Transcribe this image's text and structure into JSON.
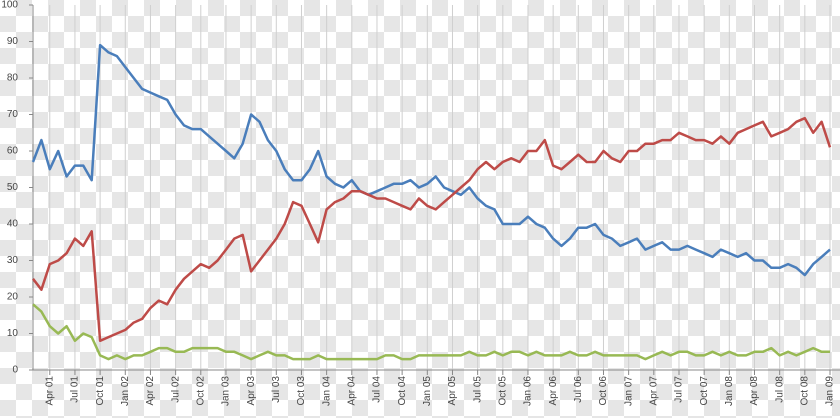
{
  "chart_data": {
    "type": "line",
    "categories": [
      null,
      null,
      "Apr 01",
      null,
      null,
      "Jul 01",
      null,
      null,
      "Oct 01",
      null,
      null,
      "Jan 02",
      null,
      null,
      "Apr 02",
      null,
      null,
      "Jul 02",
      null,
      null,
      "Oct 02",
      null,
      null,
      "Jan 03",
      null,
      null,
      "Apr 03",
      null,
      null,
      "Jul 03",
      null,
      null,
      "Oct 03",
      null,
      null,
      "Jan 04",
      null,
      null,
      "Apr 04",
      null,
      null,
      "Jul 04",
      null,
      null,
      "Oct 04",
      null,
      null,
      "Jan 05",
      null,
      null,
      "Apr 05",
      null,
      null,
      "Jul 05",
      null,
      null,
      "Oct 05",
      null,
      null,
      "Jan 06",
      null,
      null,
      "Apr 06",
      null,
      null,
      "Jul 06",
      null,
      null,
      "Oct 06",
      null,
      null,
      "Jan 07",
      null,
      null,
      "Apr 07",
      null,
      null,
      "Jul 07",
      null,
      null,
      "Oct 07",
      null,
      null,
      "Jan 08",
      null,
      null,
      "Apr 08",
      null,
      null,
      "Jul 08",
      null,
      null,
      "Oct 08",
      null,
      null,
      "Jan 09"
    ],
    "series": [
      {
        "color": "#4a7ebb",
        "values": [
          57,
          63,
          55,
          60,
          53,
          56,
          56,
          52,
          89,
          87,
          86,
          83,
          80,
          77,
          76,
          75,
          74,
          70,
          67,
          66,
          66,
          64,
          62,
          60,
          58,
          62,
          70,
          68,
          63,
          60,
          55,
          52,
          52,
          55,
          60,
          53,
          51,
          50,
          52,
          49,
          48,
          49,
          50,
          51,
          51,
          52,
          50,
          51,
          53,
          50,
          49,
          48,
          50,
          47,
          45,
          44,
          40,
          40,
          40,
          42,
          40,
          39,
          36,
          34,
          36,
          39,
          39,
          40,
          37,
          36,
          34,
          35,
          36,
          33,
          34,
          35,
          33,
          33,
          34,
          33,
          32,
          31,
          33,
          32,
          31,
          32,
          30,
          30,
          28,
          28,
          29,
          28,
          26,
          29,
          31,
          33
        ]
      },
      {
        "color": "#be4b48",
        "values": [
          25,
          22,
          29,
          30,
          32,
          36,
          34,
          38,
          8,
          9,
          10,
          11,
          13,
          14,
          17,
          19,
          18,
          22,
          25,
          27,
          29,
          28,
          30,
          33,
          36,
          37,
          27,
          30,
          33,
          36,
          40,
          46,
          45,
          40,
          35,
          44,
          46,
          47,
          49,
          49,
          48,
          47,
          47,
          46,
          45,
          44,
          47,
          45,
          44,
          46,
          48,
          50,
          52,
          55,
          57,
          55,
          57,
          58,
          57,
          60,
          60,
          63,
          56,
          55,
          57,
          59,
          57,
          57,
          60,
          58,
          57,
          60,
          60,
          62,
          62,
          63,
          63,
          65,
          64,
          63,
          63,
          62,
          64,
          62,
          65,
          66,
          67,
          68,
          64,
          65,
          66,
          68,
          69,
          65,
          68,
          61
        ]
      },
      {
        "color": "#98b954",
        "values": [
          18,
          16,
          12,
          10,
          12,
          8,
          10,
          9,
          4,
          3,
          4,
          3,
          4,
          4,
          5,
          6,
          6,
          5,
          5,
          6,
          6,
          6,
          6,
          5,
          5,
          4,
          3,
          4,
          5,
          4,
          4,
          3,
          3,
          3,
          4,
          3,
          3,
          3,
          3,
          3,
          3,
          3,
          4,
          4,
          3,
          3,
          4,
          4,
          4,
          4,
          4,
          4,
          5,
          4,
          4,
          5,
          4,
          5,
          5,
          4,
          5,
          4,
          4,
          4,
          5,
          4,
          4,
          5,
          4,
          4,
          4,
          4,
          4,
          3,
          4,
          5,
          4,
          5,
          5,
          4,
          4,
          5,
          4,
          5,
          4,
          4,
          5,
          5,
          6,
          4,
          5,
          4,
          5,
          6,
          5,
          5
        ]
      }
    ],
    "ylim": [
      0,
      100
    ],
    "yticks": [
      0,
      10,
      20,
      30,
      40,
      50,
      60,
      70,
      80,
      90,
      100
    ],
    "grid": true
  }
}
